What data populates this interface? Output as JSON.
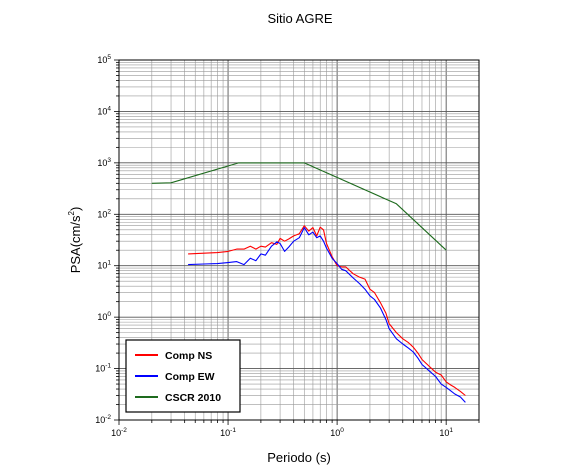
{
  "chart_data": {
    "type": "line",
    "title": "Sitio AGRE",
    "xlabel": "Periodo (s)",
    "ylabel_base": "PSA(cm/s",
    "ylabel_sup": "2",
    "ylabel_close": ")",
    "xscale": "log",
    "yscale": "log",
    "xlim": [
      0.01,
      20
    ],
    "ylim": [
      0.01,
      100000
    ],
    "grid": true,
    "legend_position": "bottom-left",
    "x_ticks": [
      {
        "base": "10",
        "exp": "-2",
        "value": 0.01
      },
      {
        "base": "10",
        "exp": "-1",
        "value": 0.1
      },
      {
        "base": "10",
        "exp": "0",
        "value": 1
      },
      {
        "base": "10",
        "exp": "1",
        "value": 10
      }
    ],
    "y_ticks": [
      {
        "base": "10",
        "exp": "-2",
        "value": 0.01
      },
      {
        "base": "10",
        "exp": "-1",
        "value": 0.1
      },
      {
        "base": "10",
        "exp": "0",
        "value": 1
      },
      {
        "base": "10",
        "exp": "1",
        "value": 10
      },
      {
        "base": "10",
        "exp": "2",
        "value": 100
      },
      {
        "base": "10",
        "exp": "3",
        "value": 1000
      },
      {
        "base": "10",
        "exp": "4",
        "value": 10000
      },
      {
        "base": "10",
        "exp": "5",
        "value": 100000
      }
    ],
    "series": [
      {
        "name": "Comp NS",
        "color": "#ff0000",
        "x": [
          0.043,
          0.06,
          0.08,
          0.1,
          0.12,
          0.14,
          0.16,
          0.18,
          0.2,
          0.22,
          0.25,
          0.28,
          0.3,
          0.33,
          0.36,
          0.4,
          0.45,
          0.5,
          0.55,
          0.6,
          0.65,
          0.7,
          0.75,
          0.8,
          0.9,
          1.0,
          1.1,
          1.2,
          1.4,
          1.6,
          1.8,
          2.0,
          2.2,
          2.5,
          2.8,
          3.0,
          3.5,
          4.0,
          4.5,
          5.0,
          5.5,
          6.0,
          7.0,
          8.0,
          9.0,
          10.0,
          11.0,
          12.0,
          13.5,
          15.0
        ],
        "y": [
          17,
          17.5,
          18,
          19,
          21,
          21,
          24,
          21,
          24,
          23,
          28,
          26,
          34,
          30,
          33,
          38,
          42,
          60,
          47,
          55,
          38,
          56,
          50,
          27,
          15,
          10,
          9.5,
          9.5,
          7,
          6,
          5.5,
          3.5,
          3,
          1.9,
          1.2,
          0.75,
          0.5,
          0.38,
          0.32,
          0.26,
          0.2,
          0.15,
          0.11,
          0.085,
          0.075,
          0.055,
          0.048,
          0.043,
          0.036,
          0.03
        ]
      },
      {
        "name": "Comp EW",
        "color": "#0000ff",
        "x": [
          0.043,
          0.06,
          0.08,
          0.1,
          0.12,
          0.14,
          0.16,
          0.18,
          0.2,
          0.22,
          0.25,
          0.28,
          0.3,
          0.33,
          0.36,
          0.4,
          0.45,
          0.5,
          0.55,
          0.6,
          0.65,
          0.7,
          0.75,
          0.8,
          0.9,
          1.0,
          1.1,
          1.2,
          1.4,
          1.6,
          1.8,
          2.0,
          2.2,
          2.5,
          2.8,
          3.0,
          3.5,
          4.0,
          4.5,
          5.0,
          5.5,
          6.0,
          7.0,
          8.0,
          9.0,
          10.0,
          11.0,
          12.0,
          13.5,
          15.0
        ],
        "y": [
          10.5,
          10.8,
          11,
          11.5,
          12,
          10.5,
          14,
          12.5,
          17,
          16,
          24,
          29,
          27,
          19,
          23,
          30,
          35,
          55,
          40,
          45,
          35,
          38,
          30,
          22,
          14,
          11,
          8.5,
          8,
          5.8,
          4.5,
          3.5,
          2.6,
          2.2,
          1.5,
          0.9,
          0.6,
          0.38,
          0.3,
          0.25,
          0.21,
          0.16,
          0.12,
          0.09,
          0.07,
          0.05,
          0.043,
          0.037,
          0.032,
          0.028,
          0.022
        ]
      },
      {
        "name": "CSCR 2010",
        "color": "#1e6b1e",
        "x": [
          0.02,
          0.03,
          0.125,
          0.5,
          3.5,
          10.0
        ],
        "y": [
          400,
          410,
          1000,
          1000,
          160,
          20
        ]
      }
    ]
  }
}
